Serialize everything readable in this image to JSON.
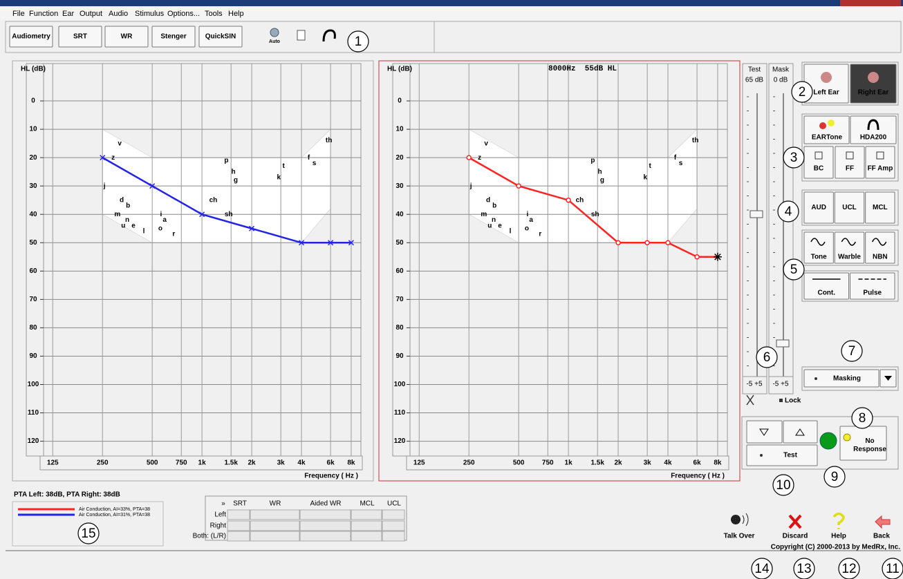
{
  "menu": [
    "File",
    "Function",
    "Ear",
    "Output",
    "Audio",
    "Stimulus",
    "Options...",
    "Tools",
    "Help"
  ],
  "tabs": [
    "Audiometry",
    "SRT",
    "WR",
    "Stenger",
    "QuickSIN"
  ],
  "toolbar_icon_label": "Auto",
  "callouts": [
    "1",
    "2",
    "3",
    "4",
    "5",
    "6",
    "7",
    "8",
    "9",
    "10",
    "11",
    "12",
    "13",
    "14",
    "15"
  ],
  "chart_data": [
    {
      "type": "line",
      "ylabel": "HL (dB)",
      "xlabel": "Frequency ( Hz )",
      "xscale": "log",
      "xlim": [
        110,
        9160
      ],
      "ylim": [
        -10,
        124
      ],
      "y_inverted": true,
      "grid": true,
      "xticks": [
        125,
        250,
        500,
        750,
        {
          "value": 1000,
          "label": "1k"
        },
        {
          "value": 1500,
          "label": "1.5k"
        },
        {
          "value": 2000,
          "label": "2k"
        },
        {
          "value": 3000,
          "label": "3k"
        },
        {
          "value": 4000,
          "label": "4k"
        },
        {
          "value": 6000,
          "label": "6k"
        },
        {
          "value": 8000,
          "label": "8k"
        }
      ],
      "yticks": [
        0,
        10,
        20,
        30,
        40,
        50,
        60,
        70,
        80,
        90,
        100,
        110,
        120
      ],
      "x": [
        250,
        500,
        1000,
        2000,
        4000,
        6000,
        8000
      ],
      "series": [
        {
          "name": "Air Conduction, AI=31%, PTA=38",
          "color": "#2424e6",
          "marker": "x",
          "values": [
            20,
            30,
            40,
            45,
            50,
            50,
            50
          ]
        }
      ],
      "speech_sounds": [
        {
          "label": "v",
          "x": 318,
          "y": 15
        },
        {
          "label": "z",
          "x": 290,
          "y": 20
        },
        {
          "label": "j",
          "x": 257,
          "y": 30
        },
        {
          "label": "d",
          "x": 327,
          "y": 35
        },
        {
          "label": "b",
          "x": 357,
          "y": 37
        },
        {
          "label": "m",
          "x": 308,
          "y": 40
        },
        {
          "label": "n",
          "x": 353,
          "y": 42
        },
        {
          "label": "u",
          "x": 334,
          "y": 44
        },
        {
          "label": "e",
          "x": 385,
          "y": 44
        },
        {
          "label": "l",
          "x": 445,
          "y": 46
        },
        {
          "label": "i",
          "x": 565,
          "y": 40
        },
        {
          "label": "a",
          "x": 595,
          "y": 42
        },
        {
          "label": "o",
          "x": 560,
          "y": 45
        },
        {
          "label": "r",
          "x": 675,
          "y": 47
        },
        {
          "label": "ch",
          "x": 1170,
          "y": 35
        },
        {
          "label": "sh",
          "x": 1450,
          "y": 40
        },
        {
          "label": "p",
          "x": 1405,
          "y": 21
        },
        {
          "label": "h",
          "x": 1550,
          "y": 25
        },
        {
          "label": "g",
          "x": 1600,
          "y": 28
        },
        {
          "label": "k",
          "x": 2920,
          "y": 27
        },
        {
          "label": "t",
          "x": 3120,
          "y": 23
        },
        {
          "label": "f",
          "x": 4430,
          "y": 20
        },
        {
          "label": "s",
          "x": 4780,
          "y": 22
        },
        {
          "label": "th",
          "x": 5860,
          "y": 14
        }
      ]
    },
    {
      "type": "line",
      "title": "8000Hz  55dB HL",
      "ylabel": "HL (dB)",
      "xlabel": "Frequency ( Hz )",
      "xscale": "log",
      "xlim": [
        110,
        9160
      ],
      "ylim": [
        -10,
        124
      ],
      "y_inverted": true,
      "grid": true,
      "xticks": [
        125,
        250,
        500,
        750,
        {
          "value": 1000,
          "label": "1k"
        },
        {
          "value": 1500,
          "label": "1.5k"
        },
        {
          "value": 2000,
          "label": "2k"
        },
        {
          "value": 3000,
          "label": "3k"
        },
        {
          "value": 4000,
          "label": "4k"
        },
        {
          "value": 6000,
          "label": "6k"
        },
        {
          "value": 8000,
          "label": "8k"
        }
      ],
      "yticks": [
        0,
        10,
        20,
        30,
        40,
        50,
        60,
        70,
        80,
        90,
        100,
        110,
        120
      ],
      "x": [
        250,
        500,
        1000,
        2000,
        3000,
        4000,
        6000,
        8000
      ],
      "series": [
        {
          "name": "Air Conduction, AI=33%, PTA=38",
          "color": "#ff2323",
          "marker": "o",
          "current_marker": "asterisk",
          "values": [
            20,
            30,
            35,
            50,
            50,
            50,
            55,
            55
          ]
        }
      ],
      "speech_sounds": [
        {
          "label": "v",
          "x": 318,
          "y": 15
        },
        {
          "label": "z",
          "x": 290,
          "y": 20
        },
        {
          "label": "j",
          "x": 257,
          "y": 30
        },
        {
          "label": "d",
          "x": 327,
          "y": 35
        },
        {
          "label": "b",
          "x": 357,
          "y": 37
        },
        {
          "label": "m",
          "x": 308,
          "y": 40
        },
        {
          "label": "n",
          "x": 353,
          "y": 42
        },
        {
          "label": "u",
          "x": 334,
          "y": 44
        },
        {
          "label": "e",
          "x": 385,
          "y": 44
        },
        {
          "label": "l",
          "x": 445,
          "y": 46
        },
        {
          "label": "i",
          "x": 565,
          "y": 40
        },
        {
          "label": "a",
          "x": 595,
          "y": 42
        },
        {
          "label": "o",
          "x": 560,
          "y": 45
        },
        {
          "label": "r",
          "x": 675,
          "y": 47
        },
        {
          "label": "ch",
          "x": 1170,
          "y": 35
        },
        {
          "label": "sh",
          "x": 1450,
          "y": 40
        },
        {
          "label": "p",
          "x": 1405,
          "y": 21
        },
        {
          "label": "h",
          "x": 1550,
          "y": 25
        },
        {
          "label": "g",
          "x": 1600,
          "y": 28
        },
        {
          "label": "k",
          "x": 2920,
          "y": 27
        },
        {
          "label": "t",
          "x": 3120,
          "y": 23
        },
        {
          "label": "f",
          "x": 4430,
          "y": 20
        },
        {
          "label": "s",
          "x": 4780,
          "y": 22
        },
        {
          "label": "th",
          "x": 5860,
          "y": 14
        }
      ]
    }
  ],
  "test_slider": {
    "label": "Test",
    "level": "65 dB",
    "steps": "-5 +5"
  },
  "mask_slider": {
    "label": "Mask",
    "level": "0 dB",
    "steps": "-5 +5"
  },
  "lock": "Lock",
  "ear_buttons": [
    "Left Ear",
    "Right Ear"
  ],
  "transducers": [
    "EARTone",
    "HDA200"
  ],
  "outputs": [
    "BC",
    "FF",
    "FF Amp"
  ],
  "test_modes": [
    "AUD",
    "UCL",
    "MCL"
  ],
  "stimuli": [
    "Tone",
    "Warble",
    "NBN"
  ],
  "presentation": [
    "Cont.",
    "Pulse"
  ],
  "masking": "Masking",
  "test_button": "Test",
  "no_response": "No Response",
  "pta": "PTA Left: 38dB, PTA Right: 38dB",
  "speech_table": {
    "header": [
      "»",
      "SRT",
      "WR",
      "Aided WR",
      "MCL",
      "UCL"
    ],
    "rows": [
      "Left",
      "Right",
      "Both: (L/R)"
    ]
  },
  "actions": [
    "Talk Over",
    "Discard",
    "Help",
    "Back"
  ],
  "copyright": "Copyright (C) 2000-2013 by MedRx, Inc."
}
